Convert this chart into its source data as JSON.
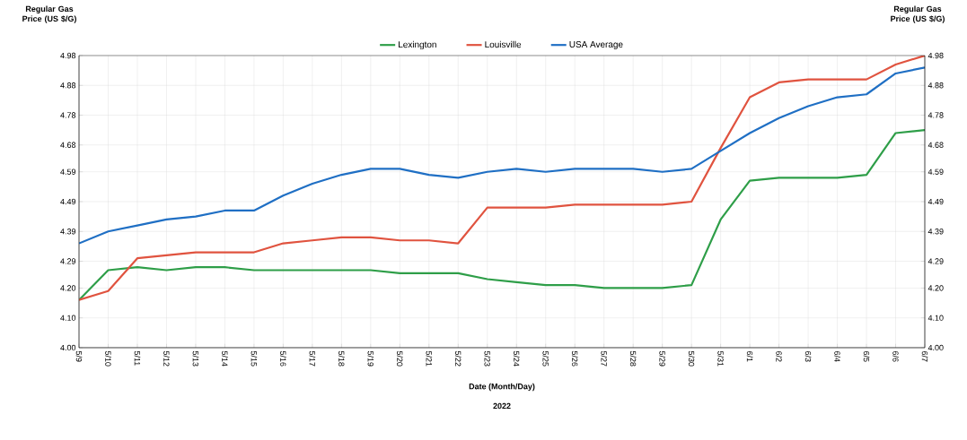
{
  "chart_data": {
    "type": "line",
    "ylabel": "Regular Gas Price (US $/G)",
    "y2label": "Regular Gas Price (US $/G)",
    "xlabel": "Date (Month/Day)",
    "annotations": [
      "2022"
    ],
    "categories": [
      "5/9",
      "5/10",
      "5/11",
      "5/12",
      "5/13",
      "5/14",
      "5/15",
      "5/16",
      "5/17",
      "5/18",
      "5/19",
      "5/20",
      "5/21",
      "5/22",
      "5/23",
      "5/24",
      "5/25",
      "5/26",
      "5/27",
      "5/28",
      "5/29",
      "5/30",
      "5/31",
      "6/1",
      "6/2",
      "6/3",
      "6/4",
      "6/5",
      "6/6",
      "6/7"
    ],
    "series": [
      {
        "name": "Lexington",
        "color": "#2e9e48",
        "values": [
          4.16,
          4.26,
          4.27,
          4.26,
          4.27,
          4.27,
          4.26,
          4.26,
          4.26,
          4.26,
          4.26,
          4.25,
          4.25,
          4.25,
          4.23,
          4.22,
          4.21,
          4.21,
          4.2,
          4.2,
          4.2,
          4.21,
          4.43,
          4.56,
          4.57,
          4.57,
          4.57,
          4.58,
          4.72,
          4.73
        ]
      },
      {
        "name": "Louisville",
        "color": "#e0533f",
        "values": [
          4.16,
          4.19,
          4.3,
          4.31,
          4.32,
          4.32,
          4.32,
          4.35,
          4.36,
          4.37,
          4.37,
          4.36,
          4.36,
          4.35,
          4.47,
          4.47,
          4.47,
          4.48,
          4.48,
          4.48,
          4.48,
          4.49,
          4.67,
          4.84,
          4.89,
          4.9,
          4.9,
          4.9,
          4.95,
          4.98
        ]
      },
      {
        "name": "USA Average",
        "color": "#1f6fc4",
        "values": [
          4.35,
          4.39,
          4.41,
          4.43,
          4.44,
          4.46,
          4.46,
          4.51,
          4.55,
          4.58,
          4.6,
          4.6,
          4.58,
          4.57,
          4.59,
          4.6,
          4.59,
          4.6,
          4.6,
          4.6,
          4.59,
          4.6,
          4.66,
          4.72,
          4.77,
          4.81,
          4.84,
          4.85,
          4.92,
          4.94
        ]
      }
    ],
    "ylim": [
      4.0,
      4.98
    ],
    "yticks": [
      {
        "value": 4.0,
        "label": "4.00"
      },
      {
        "value": 4.1,
        "label": "4.10"
      },
      {
        "value": 4.2,
        "label": "4.20"
      },
      4.29,
      4.39,
      4.49,
      4.59,
      4.68,
      4.78,
      4.88,
      4.98
    ],
    "y2lim": [
      4.0,
      4.98
    ],
    "y2ticks": [
      {
        "value": 4.0,
        "label": "4.00"
      },
      {
        "value": 4.1,
        "label": "4.10"
      },
      {
        "value": 4.2,
        "label": "4.20"
      },
      4.29,
      4.39,
      4.49,
      4.59,
      4.68,
      4.78,
      4.88,
      4.98
    ],
    "grid": true,
    "legend": "top",
    "marker": "none",
    "line_style": "solid"
  }
}
